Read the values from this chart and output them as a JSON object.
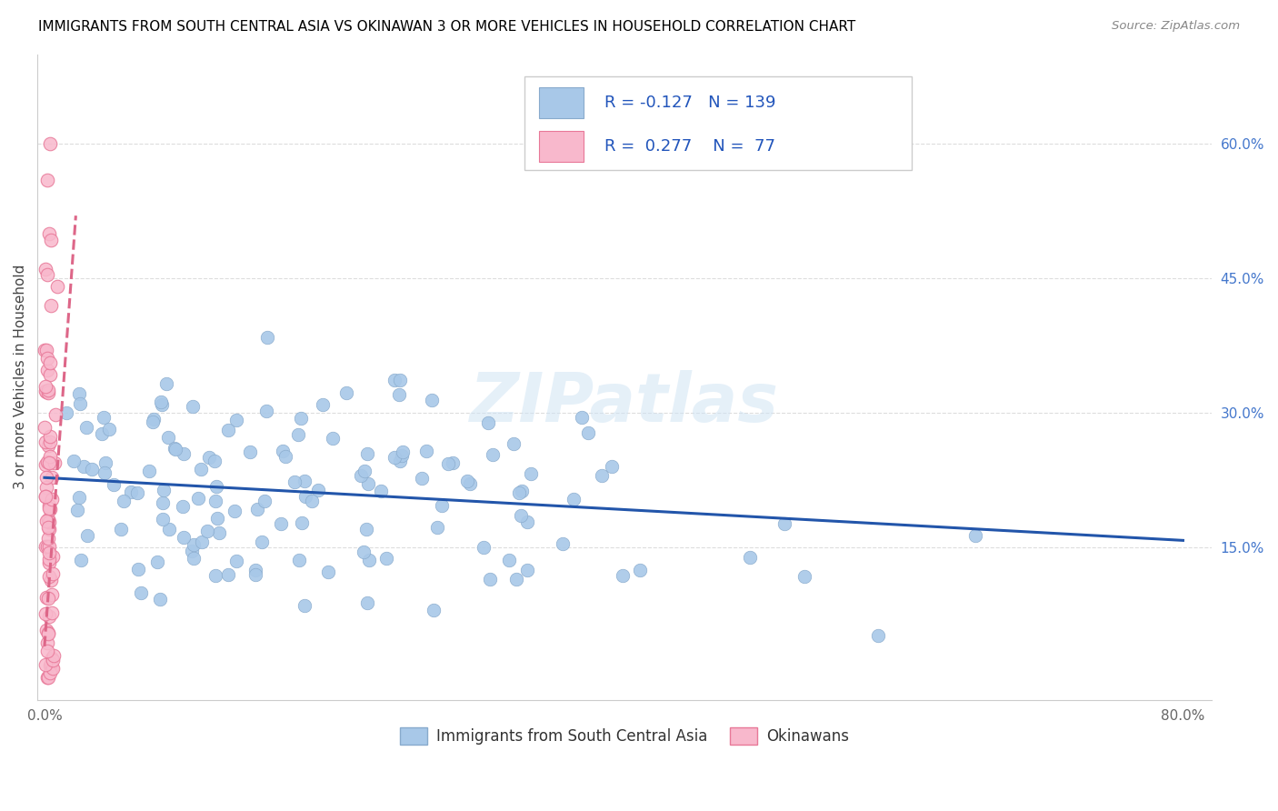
{
  "title": "IMMIGRANTS FROM SOUTH CENTRAL ASIA VS OKINAWAN 3 OR MORE VEHICLES IN HOUSEHOLD CORRELATION CHART",
  "source": "Source: ZipAtlas.com",
  "ylabel": "3 or more Vehicles in Household",
  "xlim": [
    -0.005,
    0.82
  ],
  "ylim": [
    -0.02,
    0.7
  ],
  "xticks": [
    0.0,
    0.1,
    0.2,
    0.3,
    0.4,
    0.5,
    0.6,
    0.7,
    0.8
  ],
  "xticklabels": [
    "0.0%",
    "",
    "",
    "",
    "",
    "",
    "",
    "",
    "80.0%"
  ],
  "right_yticks": [
    0.15,
    0.3,
    0.45,
    0.6
  ],
  "right_yticklabels": [
    "15.0%",
    "30.0%",
    "45.0%",
    "60.0%"
  ],
  "legend_label1": "Immigrants from South Central Asia",
  "legend_label2": "Okinawans",
  "legend_R1": "-0.127",
  "legend_N1": "139",
  "legend_R2": "0.277",
  "legend_N2": "77",
  "blue_color": "#a8c8e8",
  "blue_edge_color": "#88aacc",
  "blue_line_color": "#2255aa",
  "pink_color": "#f8b8cc",
  "pink_edge_color": "#e87898",
  "pink_line_color": "#dd6688",
  "watermark": "ZIPatlas",
  "blue_trendline_x": [
    0.0,
    0.8
  ],
  "blue_trendline_y": [
    0.228,
    0.158
  ],
  "pink_trendline_x": [
    0.0,
    0.022
  ],
  "pink_trendline_y": [
    0.04,
    0.52
  ]
}
